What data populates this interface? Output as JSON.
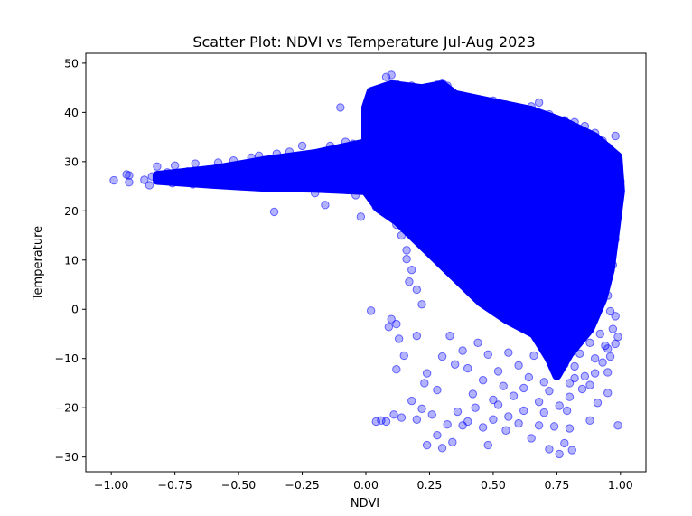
{
  "chart_data": {
    "type": "scatter",
    "title": "Scatter Plot: NDVI vs Temperature Jul-Aug 2023",
    "xlabel": "NDVI",
    "ylabel": "Temperature",
    "xlim": [
      -1.1,
      1.1
    ],
    "ylim": [
      -33,
      52
    ],
    "x_ticks": [
      {
        "value": -1.0,
        "label": "−1.00"
      },
      {
        "value": -0.75,
        "label": "−0.75"
      },
      {
        "value": -0.5,
        "label": "−0.50"
      },
      {
        "value": -0.25,
        "label": "−0.25"
      },
      {
        "value": 0.0,
        "label": "0.00"
      },
      {
        "value": 0.25,
        "label": "0.25"
      },
      {
        "value": 0.5,
        "label": "0.50"
      },
      {
        "value": 0.75,
        "label": "0.75"
      },
      {
        "value": 1.0,
        "label": "1.00"
      }
    ],
    "y_ticks": [
      {
        "value": -30,
        "label": "−30"
      },
      {
        "value": -20,
        "label": "−20"
      },
      {
        "value": -10,
        "label": "−10"
      },
      {
        "value": 0,
        "label": "0"
      },
      {
        "value": 10,
        "label": "10"
      },
      {
        "value": 20,
        "label": "20"
      },
      {
        "value": 30,
        "label": "30"
      },
      {
        "value": 40,
        "label": "40"
      },
      {
        "value": 50,
        "label": "50"
      }
    ],
    "grid": false,
    "series": [
      {
        "color": "#0000ff",
        "alpha": 0.3,
        "points": [
          [
            -0.99,
            26.2
          ],
          [
            -0.94,
            27.4
          ],
          [
            -0.93,
            25.8
          ],
          [
            -0.93,
            27.2
          ],
          [
            -0.87,
            26.3
          ],
          [
            -0.85,
            25.2
          ],
          [
            -0.84,
            27.0
          ],
          [
            -0.82,
            29.0
          ],
          [
            -0.8,
            26.5
          ],
          [
            -0.78,
            27.8
          ],
          [
            -0.76,
            25.6
          ],
          [
            -0.75,
            29.2
          ],
          [
            -0.72,
            26.8
          ],
          [
            -0.7,
            28.0
          ],
          [
            -0.68,
            25.4
          ],
          [
            -0.67,
            29.6
          ],
          [
            -0.65,
            27.2
          ],
          [
            -0.62,
            28.4
          ],
          [
            -0.6,
            25.8
          ],
          [
            -0.58,
            29.8
          ],
          [
            -0.55,
            27.6
          ],
          [
            -0.52,
            30.2
          ],
          [
            -0.5,
            26.0
          ],
          [
            -0.48,
            28.8
          ],
          [
            -0.45,
            30.8
          ],
          [
            -0.42,
            31.2
          ],
          [
            -0.4,
            25.6
          ],
          [
            -0.38,
            29.0
          ],
          [
            -0.36,
            19.8
          ],
          [
            -0.35,
            31.6
          ],
          [
            -0.32,
            27.8
          ],
          [
            -0.3,
            32.0
          ],
          [
            -0.28,
            24.6
          ],
          [
            -0.25,
            33.2
          ],
          [
            -0.22,
            29.0
          ],
          [
            -0.2,
            23.6
          ],
          [
            -0.16,
            21.2
          ],
          [
            -0.14,
            33.2
          ],
          [
            -0.12,
            30.0
          ],
          [
            -0.1,
            41.0
          ],
          [
            -0.08,
            34.0
          ],
          [
            -0.05,
            33.6
          ],
          [
            -0.04,
            23.2
          ],
          [
            -0.02,
            27.8
          ],
          [
            0.0,
            35.5
          ],
          [
            0.01,
            25.0
          ],
          [
            -0.02,
            18.8
          ],
          [
            0.02,
            -0.3
          ],
          [
            0.04,
            21.0
          ],
          [
            0.05,
            44.4
          ],
          [
            0.08,
            47.2
          ],
          [
            0.1,
            47.6
          ],
          [
            0.12,
            45.8
          ],
          [
            0.14,
            24.0
          ],
          [
            0.15,
            44.8
          ],
          [
            0.16,
            43.0
          ],
          [
            0.18,
            45.4
          ],
          [
            0.2,
            42.2
          ],
          [
            0.22,
            44.2
          ],
          [
            0.24,
            45.0
          ],
          [
            0.26,
            43.8
          ],
          [
            0.28,
            45.6
          ],
          [
            0.3,
            46.0
          ],
          [
            0.32,
            45.4
          ],
          [
            0.34,
            42.6
          ],
          [
            0.36,
            43.4
          ],
          [
            0.4,
            43.0
          ],
          [
            0.45,
            41.8
          ],
          [
            0.5,
            42.4
          ],
          [
            0.55,
            41.6
          ],
          [
            0.6,
            40.4
          ],
          [
            0.65,
            41.2
          ],
          [
            0.68,
            42.0
          ],
          [
            0.72,
            39.6
          ],
          [
            0.78,
            38.4
          ],
          [
            0.82,
            38.0
          ],
          [
            0.86,
            37.2
          ],
          [
            0.9,
            35.8
          ],
          [
            0.93,
            34.2
          ],
          [
            0.95,
            33.0
          ],
          [
            0.98,
            35.2
          ],
          [
            0.99,
            30.0
          ],
          [
            1.0,
            26.0
          ],
          [
            0.99,
            22.0
          ],
          [
            0.98,
            18.0
          ],
          [
            0.96,
            13.8
          ],
          [
            0.98,
            14.2
          ],
          [
            0.97,
            9.0
          ],
          [
            0.94,
            5.8
          ],
          [
            0.95,
            2.8
          ],
          [
            0.96,
            -0.4
          ],
          [
            0.98,
            -1.4
          ],
          [
            0.97,
            -4.0
          ],
          [
            0.99,
            -5.6
          ],
          [
            0.95,
            -8.0
          ],
          [
            0.96,
            -9.6
          ],
          [
            0.93,
            -10.8
          ],
          [
            0.95,
            -12.8
          ],
          [
            0.95,
            -17.0
          ],
          [
            0.9,
            -13.0
          ],
          [
            0.88,
            -15.4
          ],
          [
            0.91,
            -19.0
          ],
          [
            0.88,
            -22.6
          ],
          [
            0.85,
            -16.2
          ],
          [
            0.82,
            -14.0
          ],
          [
            0.8,
            -17.8
          ],
          [
            0.79,
            -20.6
          ],
          [
            0.8,
            -24.2
          ],
          [
            0.81,
            -28.6
          ],
          [
            0.78,
            -27.2
          ],
          [
            0.76,
            -29.4
          ],
          [
            0.74,
            -23.8
          ],
          [
            0.72,
            -28.4
          ],
          [
            0.7,
            -21.0
          ],
          [
            0.68,
            -23.6
          ],
          [
            0.65,
            -26.2
          ],
          [
            0.62,
            -20.6
          ],
          [
            0.6,
            -23.2
          ],
          [
            0.56,
            -21.8
          ],
          [
            0.55,
            -24.6
          ],
          [
            0.52,
            -19.4
          ],
          [
            0.5,
            -22.4
          ],
          [
            0.48,
            -27.6
          ],
          [
            0.46,
            -24.0
          ],
          [
            0.43,
            -20.0
          ],
          [
            0.4,
            -22.8
          ],
          [
            0.38,
            -23.6
          ],
          [
            0.36,
            -20.8
          ],
          [
            0.34,
            -27.0
          ],
          [
            0.32,
            -23.4
          ],
          [
            0.3,
            -28.2
          ],
          [
            0.28,
            -25.6
          ],
          [
            0.26,
            -21.4
          ],
          [
            0.24,
            -27.6
          ],
          [
            0.22,
            -20.2
          ],
          [
            0.2,
            -22.4
          ],
          [
            0.18,
            -18.6
          ],
          [
            0.14,
            -22.0
          ],
          [
            0.11,
            -21.4
          ],
          [
            0.08,
            -22.8
          ],
          [
            0.06,
            -22.6
          ],
          [
            0.04,
            -22.8
          ],
          [
            0.99,
            -23.6
          ],
          [
            0.98,
            -7.0
          ],
          [
            0.15,
            -9.4
          ],
          [
            0.13,
            -6.0
          ],
          [
            0.12,
            -12.2
          ],
          [
            0.1,
            -2.0
          ],
          [
            0.09,
            -3.6
          ],
          [
            0.12,
            -3.0
          ],
          [
            0.2,
            -5.4
          ],
          [
            0.24,
            -13.0
          ],
          [
            0.23,
            -15.0
          ],
          [
            0.28,
            -16.4
          ],
          [
            0.3,
            -9.6
          ],
          [
            0.33,
            -5.4
          ],
          [
            0.35,
            -11.2
          ],
          [
            0.38,
            -8.4
          ],
          [
            0.4,
            -12.0
          ],
          [
            0.42,
            -17.2
          ],
          [
            0.44,
            -6.8
          ],
          [
            0.46,
            -14.4
          ],
          [
            0.48,
            -9.2
          ],
          [
            0.5,
            -18.4
          ],
          [
            0.52,
            -12.6
          ],
          [
            0.54,
            -15.6
          ],
          [
            0.56,
            -8.8
          ],
          [
            0.58,
            -17.6
          ],
          [
            0.6,
            -11.4
          ],
          [
            0.62,
            -16.0
          ],
          [
            0.64,
            -13.8
          ],
          [
            0.66,
            -9.4
          ],
          [
            0.68,
            -18.8
          ],
          [
            0.7,
            -14.8
          ],
          [
            0.72,
            -16.6
          ],
          [
            0.74,
            -12.0
          ],
          [
            0.76,
            -19.6
          ],
          [
            0.78,
            -11.2
          ],
          [
            0.8,
            -15.0
          ],
          [
            0.82,
            -11.6
          ],
          [
            0.84,
            -9.0
          ],
          [
            0.86,
            -13.6
          ],
          [
            0.88,
            -6.8
          ],
          [
            0.9,
            -10.0
          ],
          [
            0.92,
            -5.0
          ],
          [
            0.94,
            -7.4
          ],
          [
            0.22,
            1.0
          ],
          [
            0.2,
            4.0
          ],
          [
            0.18,
            8.0
          ],
          [
            0.16,
            12.0
          ],
          [
            0.19,
            16.0
          ],
          [
            0.17,
            5.6
          ],
          [
            0.16,
            10.2
          ],
          [
            0.14,
            15.0
          ],
          [
            0.12,
            17.2
          ],
          [
            0.1,
            19.6
          ],
          [
            0.07,
            22.4
          ],
          [
            0.04,
            20.8
          ]
        ]
      }
    ]
  }
}
